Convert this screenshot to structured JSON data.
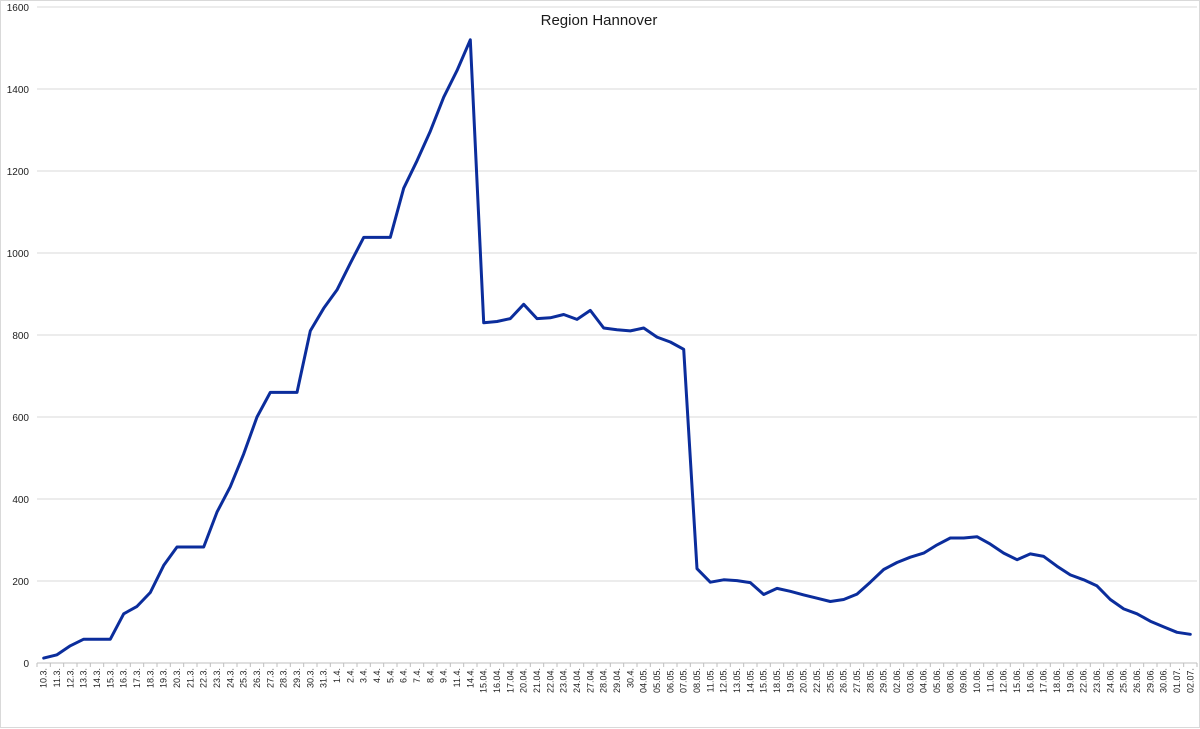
{
  "colors": {
    "series": "#0b2d9c",
    "grid": "#d9d9d9",
    "axis": "#bfbfbf",
    "text": "#222222"
  },
  "chart_data": {
    "type": "line",
    "title": "Region Hannover",
    "xlabel": "",
    "ylabel": "",
    "ylim": [
      0,
      1600
    ],
    "yticks": [
      0,
      200,
      400,
      600,
      800,
      1000,
      1200,
      1400,
      1600
    ],
    "grid": true,
    "legend": "none",
    "categories": [
      "10.3.",
      "11.3.",
      "12.3.",
      "13.3.",
      "14.3.",
      "15.3.",
      "16.3.",
      "17.3.",
      "18.3.",
      "19.3.",
      "20.3.",
      "21.3.",
      "22.3.",
      "23.3.",
      "24.3.",
      "25.3.",
      "26.3.",
      "27.3.",
      "28.3.",
      "29.3.",
      "30.3.",
      "31.3.",
      "1.4.",
      "2.4.",
      "3.4.",
      "4.4.",
      "5.4.",
      "6.4.",
      "7.4.",
      "8.4.",
      "9.4.",
      "11.4.",
      "14.4.",
      "15.04.",
      "16.04.",
      "17.04.",
      "20.04.",
      "21.04.",
      "22.04.",
      "23.04.",
      "24.04.",
      "27.04.",
      "28.04.",
      "29.04.",
      "30.4.",
      "04.05.",
      "05.05.",
      "06.05.",
      "07.05.",
      "08.05.",
      "11.05.",
      "12.05.",
      "13.05.",
      "14.05.",
      "15.05.",
      "18.05.",
      "19.05.",
      "20.05.",
      "22.05.",
      "25.05.",
      "26.05.",
      "27.05.",
      "28.05.",
      "29.05.",
      "02.06.",
      "03.06.",
      "04.06.",
      "05.06.",
      "08.06.",
      "09.06.",
      "10.06.",
      "11.06.",
      "12.06.",
      "15.06.",
      "16.06.",
      "17.06.",
      "18.06.",
      "19.06.",
      "22.06.",
      "23.06.",
      "24.06.",
      "25.06.",
      "26.06.",
      "29.06.",
      "30.06.",
      "01.07.",
      "02.07."
    ],
    "series": [
      {
        "name": "",
        "color": "#0b2d9c",
        "values": [
          12,
          20,
          42,
          58,
          58,
          58,
          120,
          138,
          172,
          238,
          283,
          283,
          283,
          368,
          430,
          510,
          600,
          660,
          660,
          660,
          810,
          865,
          910,
          975,
          1038,
          1038,
          1038,
          1158,
          1225,
          1297,
          1380,
          1445,
          1520,
          830,
          833,
          840,
          875,
          840,
          842,
          850,
          838,
          860,
          817,
          813,
          810,
          817,
          795,
          783,
          765,
          230,
          197,
          203,
          201,
          196,
          167,
          182,
          175,
          166,
          158,
          150,
          155,
          168,
          197,
          228,
          245,
          258,
          268,
          288,
          305,
          305,
          308,
          290,
          268,
          252,
          266,
          260,
          236,
          215,
          203,
          188,
          155,
          132,
          120,
          102,
          88,
          75,
          70
        ]
      }
    ]
  }
}
